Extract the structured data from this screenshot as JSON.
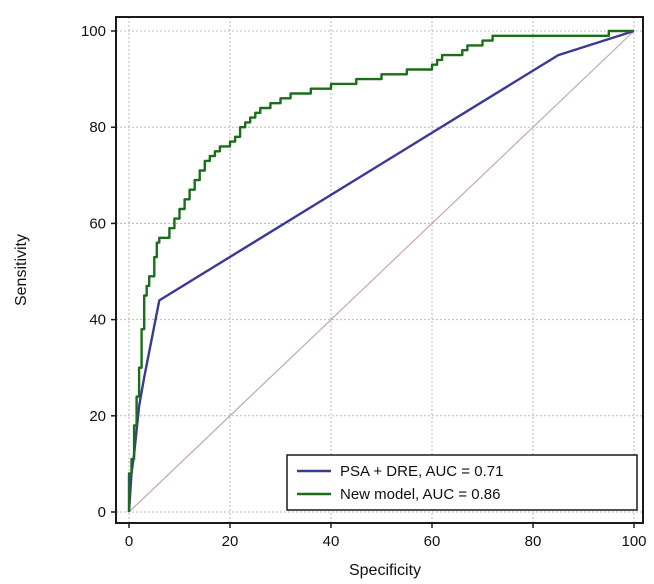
{
  "chart_data": {
    "type": "line",
    "title": "",
    "xlabel": "Specificity",
    "ylabel": "Sensitivity",
    "xlim": [
      0,
      100
    ],
    "ylim": [
      0,
      100
    ],
    "xticks": [
      "0",
      "20",
      "40",
      "60",
      "80",
      "100"
    ],
    "yticks": [
      "0",
      "20",
      "40",
      "60",
      "80",
      "100"
    ],
    "grid": true,
    "legend_position": "bottom-right",
    "reference_line": {
      "x": [
        0,
        100
      ],
      "y": [
        0,
        100
      ],
      "color": "#c8a6a6"
    },
    "series": [
      {
        "name": "PSA + DRE, AUC = 0.71",
        "color": "#3a3a96",
        "x": [
          0,
          0.5,
          1,
          2,
          3,
          6,
          85,
          100
        ],
        "y": [
          0,
          8,
          12,
          22,
          28,
          44,
          95,
          100
        ]
      },
      {
        "name": "New model, AUC = 0.86",
        "color": "#1a6e1a",
        "x": [
          0,
          0.5,
          1,
          1.5,
          2,
          2.5,
          3,
          3.5,
          4,
          5,
          5.5,
          6,
          8,
          9,
          10,
          11,
          12,
          13,
          14,
          15,
          16,
          17,
          18,
          19,
          20,
          21,
          22,
          23,
          24,
          25,
          26,
          28,
          30,
          32,
          34,
          36,
          38,
          40,
          45,
          50,
          55,
          60,
          61,
          62,
          64,
          66,
          67,
          70,
          72,
          73,
          80,
          85,
          90,
          95,
          97,
          100
        ],
        "y": [
          0,
          8,
          11,
          18,
          24,
          30,
          38,
          45,
          47,
          49,
          53,
          56,
          57,
          59,
          61,
          63,
          65,
          67,
          69,
          71,
          73,
          74,
          75,
          76,
          76,
          77,
          78,
          80,
          81,
          82,
          83,
          84,
          85,
          86,
          87,
          87,
          88,
          88,
          89,
          90,
          91,
          92,
          93,
          94,
          95,
          95,
          96,
          97,
          98,
          99,
          99,
          99,
          99,
          99,
          100,
          100
        ]
      }
    ]
  }
}
